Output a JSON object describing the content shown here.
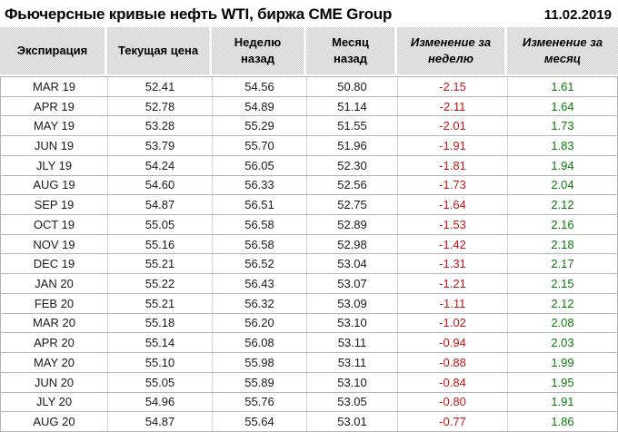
{
  "header": {
    "title": "Фьючерсные кривые нефть WTI, биржа CME Group",
    "date": "11.02.2019"
  },
  "colors": {
    "negative_change": "#cc1414",
    "positive_change": "#0b7a0b",
    "header_background": "#d9d9d9",
    "grid_line": "#b3b3b3"
  },
  "chart_data": {
    "type": "table",
    "title": "Фьючерсные кривые нефть WTI, биржа CME Group",
    "date": "11.02.2019",
    "columns": [
      "Экспирация",
      "Текущая цена",
      "Неделю назад",
      "Месяц назад",
      "Изменение за неделю",
      "Изменение за месяц"
    ],
    "rows": [
      [
        "MAR 19",
        "52.41",
        "54.56",
        "50.80",
        "-2.15",
        "1.61"
      ],
      [
        "APR 19",
        "52.78",
        "54.89",
        "51.14",
        "-2.11",
        "1.64"
      ],
      [
        "MAY 19",
        "53.28",
        "55.29",
        "51.55",
        "-2.01",
        "1.73"
      ],
      [
        "JUN 19",
        "53.79",
        "55.70",
        "51.96",
        "-1.91",
        "1.83"
      ],
      [
        "JLY 19",
        "54.24",
        "56.05",
        "52.30",
        "-1.81",
        "1.94"
      ],
      [
        "AUG 19",
        "54.60",
        "56.33",
        "52.56",
        "-1.73",
        "2.04"
      ],
      [
        "SEP 19",
        "54.87",
        "56.51",
        "52.75",
        "-1.64",
        "2.12"
      ],
      [
        "OCT 19",
        "55.05",
        "56.58",
        "52.89",
        "-1.53",
        "2.16"
      ],
      [
        "NOV 19",
        "55.16",
        "56.58",
        "52.98",
        "-1.42",
        "2.18"
      ],
      [
        "DEC 19",
        "55.21",
        "56.52",
        "53.04",
        "-1.31",
        "2.17"
      ],
      [
        "JAN 20",
        "55.22",
        "56.43",
        "53.07",
        "-1.21",
        "2.15"
      ],
      [
        "FEB 20",
        "55.21",
        "56.32",
        "53.09",
        "-1.11",
        "2.12"
      ],
      [
        "MAR 20",
        "55.18",
        "56.20",
        "53.10",
        "-1.02",
        "2.08"
      ],
      [
        "APR 20",
        "55.14",
        "56.08",
        "53.11",
        "-0.94",
        "2.03"
      ],
      [
        "MAY 20",
        "55.10",
        "55.98",
        "53.11",
        "-0.88",
        "1.99"
      ],
      [
        "JUN 20",
        "55.05",
        "55.89",
        "53.10",
        "-0.84",
        "1.95"
      ],
      [
        "JLY 20",
        "54.96",
        "55.76",
        "53.05",
        "-0.80",
        "1.91"
      ],
      [
        "AUG 20",
        "54.87",
        "55.64",
        "53.01",
        "-0.77",
        "1.86"
      ]
    ]
  }
}
